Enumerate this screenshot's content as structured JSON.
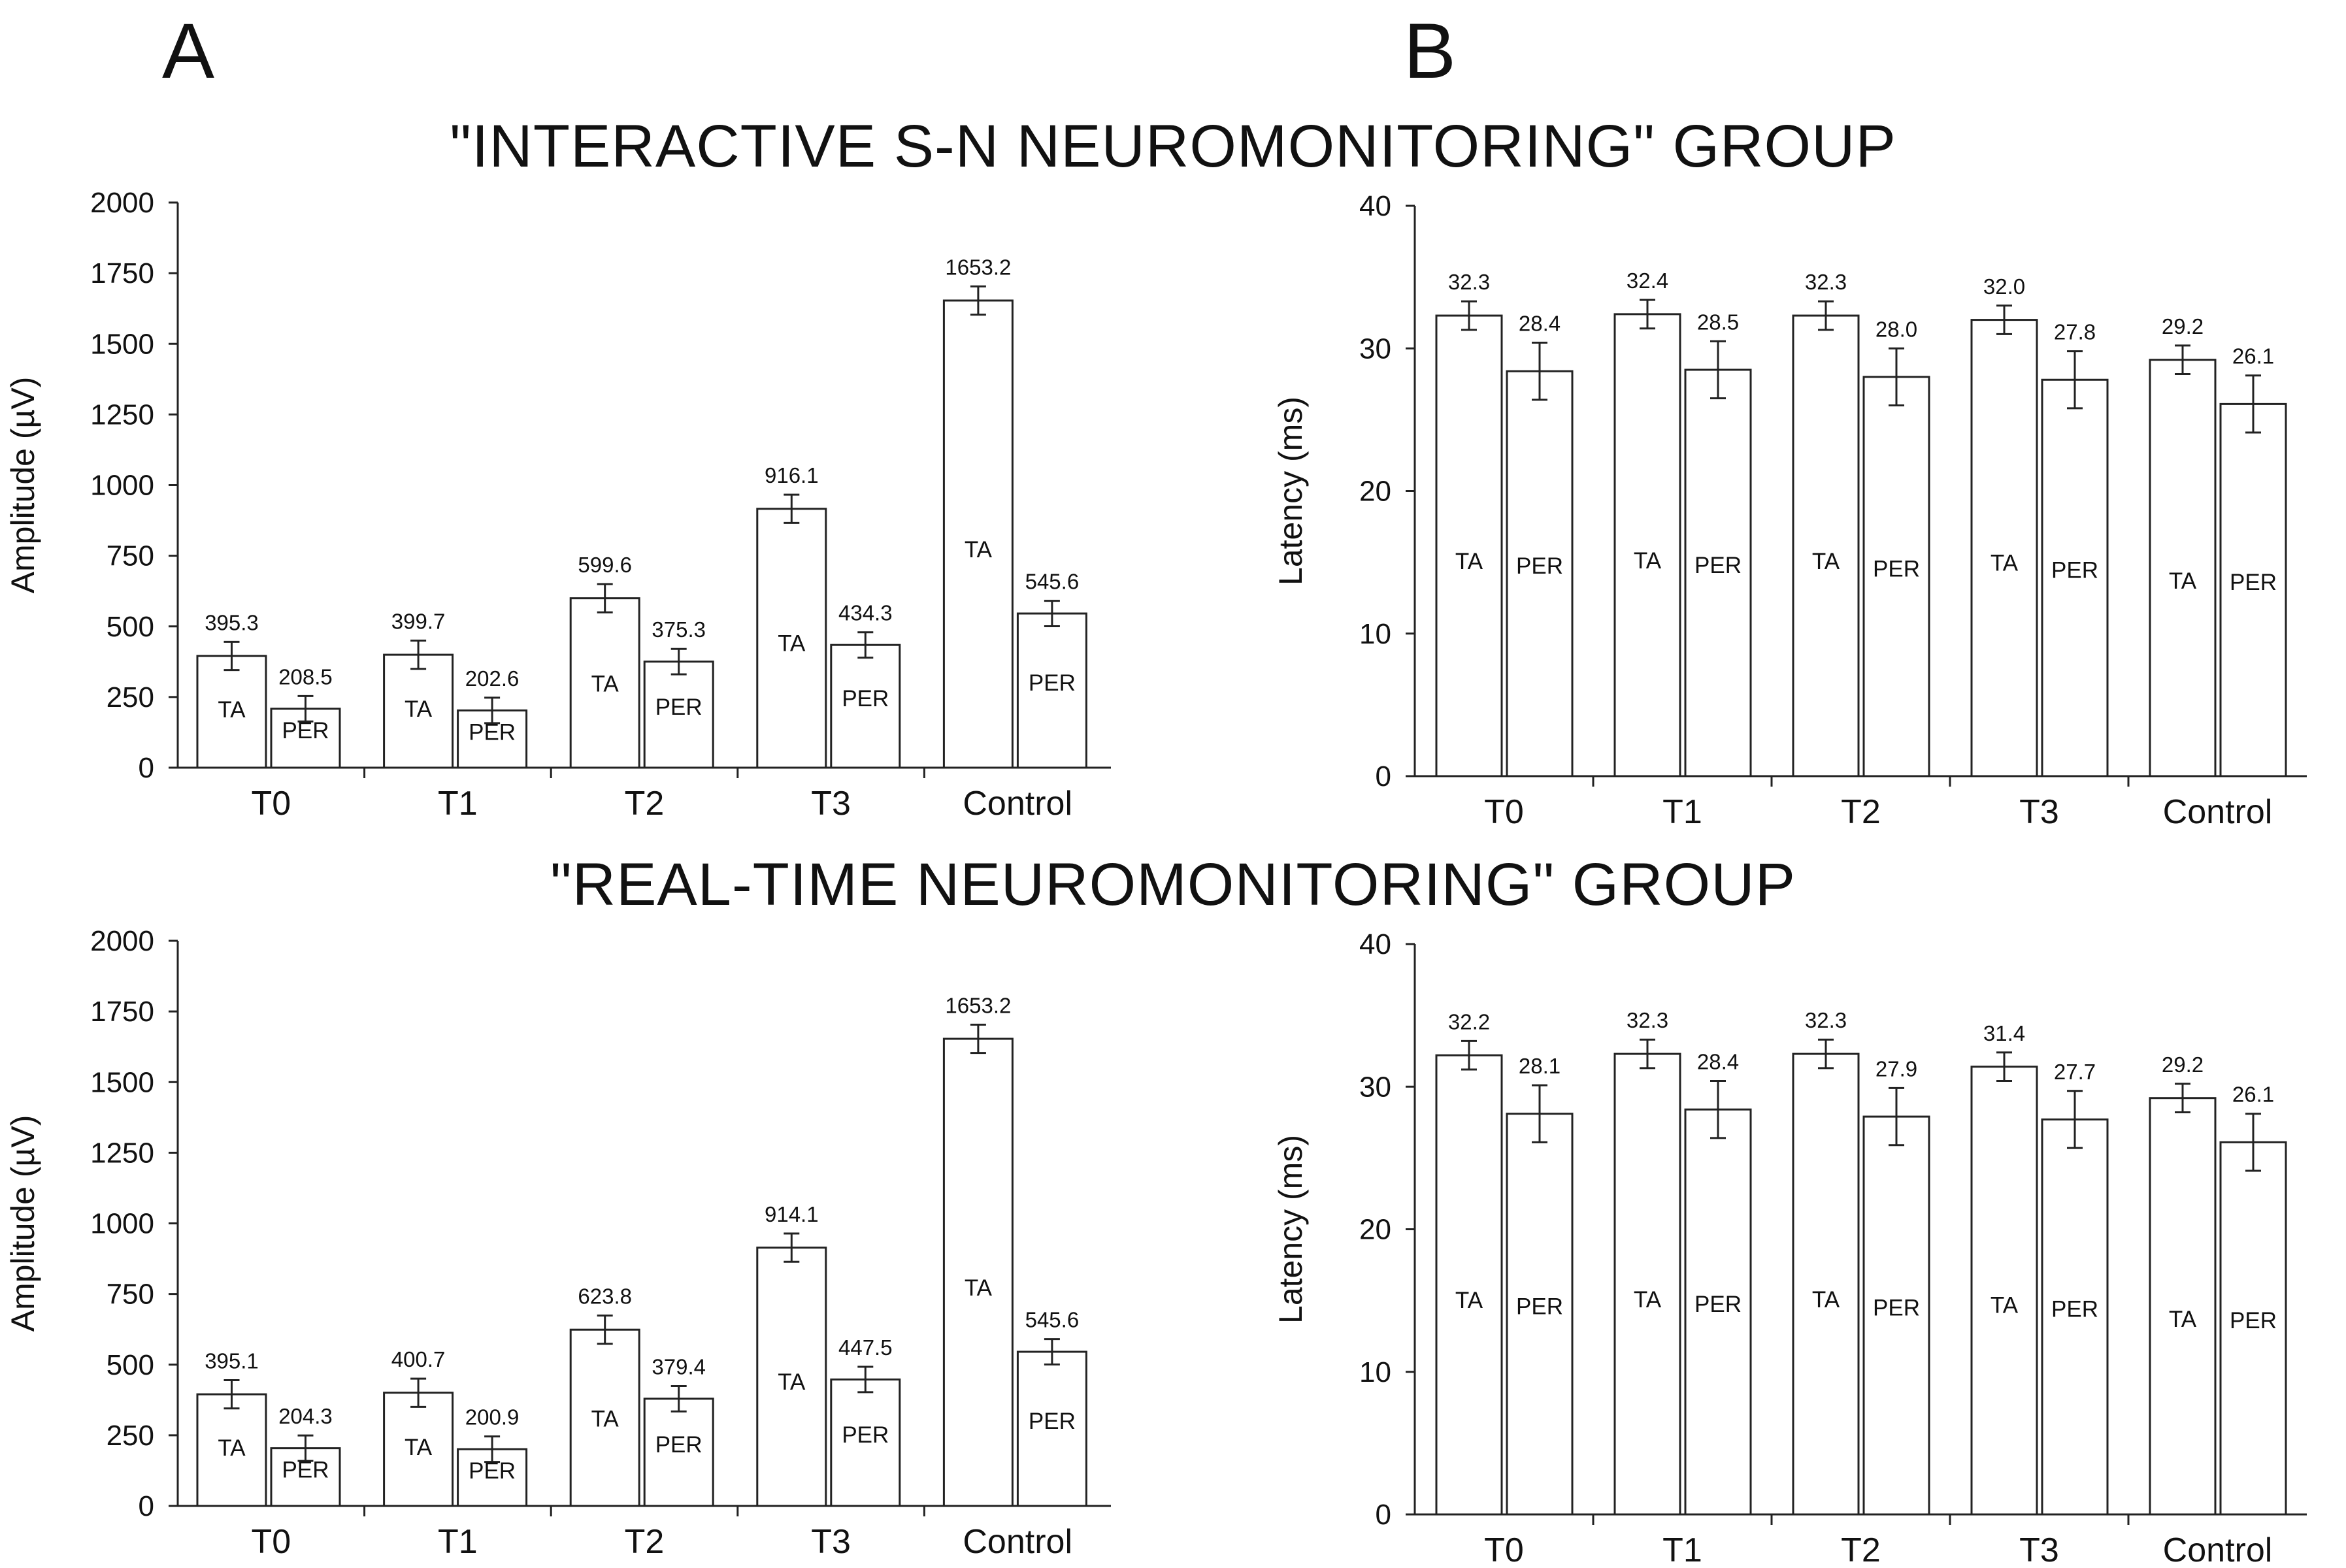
{
  "panels": {
    "a": "A",
    "b": "B"
  },
  "groups": {
    "top": "\"INTERACTIVE S-N NEUROMONITORING\" GROUP",
    "bottom": "\"REAL-TIME NEUROMONITORING\" GROUP"
  },
  "chart_data": [
    {
      "id": "top-amplitude",
      "type": "bar",
      "title": "",
      "xlabel": "",
      "ylabel": "Amplitude (µV)",
      "ylim": [
        0,
        2000
      ],
      "yticks": [
        0,
        250,
        500,
        750,
        1000,
        1250,
        1500,
        1750,
        2000
      ],
      "categories": [
        "T0",
        "T1",
        "T2",
        "T3",
        "Control"
      ],
      "series": [
        {
          "label": "TA",
          "values": [
            395.3,
            399.7,
            599.6,
            916.1,
            1653.2
          ],
          "errors": [
            50,
            50,
            50,
            50,
            50
          ]
        },
        {
          "label": "PER",
          "values": [
            208.5,
            202.6,
            375.3,
            434.3,
            545.6
          ],
          "errors": [
            45,
            45,
            45,
            45,
            45
          ]
        }
      ],
      "value_labels": [
        [
          "395.3",
          "399.7",
          "599.6",
          "916.1",
          "1653.2"
        ],
        [
          "208.5",
          "202.6",
          "375.3",
          "434.3",
          "545.6"
        ]
      ],
      "grid": false
    },
    {
      "id": "top-latency",
      "type": "bar",
      "title": "",
      "xlabel": "",
      "ylabel": "Latency (ms)",
      "ylim": [
        0,
        40
      ],
      "yticks": [
        0,
        10,
        20,
        30,
        40
      ],
      "categories": [
        "T0",
        "T1",
        "T2",
        "T3",
        "Control"
      ],
      "series": [
        {
          "label": "TA",
          "values": [
            32.3,
            32.4,
            32.3,
            32.0,
            29.2
          ],
          "errors": [
            1,
            1,
            1,
            1,
            1
          ]
        },
        {
          "label": "PER",
          "values": [
            28.4,
            28.5,
            28.0,
            27.8,
            26.1
          ],
          "errors": [
            2,
            2,
            2,
            2,
            2
          ]
        }
      ],
      "value_labels": [
        [
          "32.3",
          "32.4",
          "32.3",
          "32.0",
          "29.2"
        ],
        [
          "28.4",
          "28.5",
          "28.0",
          "27.8",
          "26.1"
        ]
      ],
      "grid": false
    },
    {
      "id": "bottom-amplitude",
      "type": "bar",
      "title": "",
      "xlabel": "",
      "ylabel": "Amplitude (µV)",
      "ylim": [
        0,
        2000
      ],
      "yticks": [
        0,
        250,
        500,
        750,
        1000,
        1250,
        1500,
        1750,
        2000
      ],
      "categories": [
        "T0",
        "T1",
        "T2",
        "T3",
        "Control"
      ],
      "series": [
        {
          "label": "TA",
          "values": [
            395.1,
            400.7,
            623.8,
            914.1,
            1653.2
          ],
          "errors": [
            50,
            50,
            50,
            50,
            50
          ]
        },
        {
          "label": "PER",
          "values": [
            204.3,
            200.9,
            379.4,
            447.5,
            545.6
          ],
          "errors": [
            45,
            45,
            45,
            45,
            45
          ]
        }
      ],
      "value_labels": [
        [
          "395.1",
          "400.7",
          "623.8",
          "914.1",
          "1653.2"
        ],
        [
          "204.3",
          "200.9",
          "379.4",
          "447.5",
          "545.6"
        ]
      ],
      "grid": false
    },
    {
      "id": "bottom-latency",
      "type": "bar",
      "title": "",
      "xlabel": "",
      "ylabel": "Latency (ms)",
      "ylim": [
        0,
        40
      ],
      "yticks": [
        0,
        10,
        20,
        30,
        40
      ],
      "categories": [
        "T0",
        "T1",
        "T2",
        "T3",
        "Control"
      ],
      "series": [
        {
          "label": "TA",
          "values": [
            32.2,
            32.3,
            32.3,
            31.4,
            29.2
          ],
          "errors": [
            1,
            1,
            1,
            1,
            1
          ]
        },
        {
          "label": "PER",
          "values": [
            28.1,
            28.4,
            27.9,
            27.7,
            26.1
          ],
          "errors": [
            2,
            2,
            2,
            2,
            2
          ]
        }
      ],
      "value_labels": [
        [
          "32.2",
          "32.3",
          "32.3",
          "31.4",
          "29.2"
        ],
        [
          "28.1",
          "28.4",
          "27.9",
          "27.7",
          "26.1"
        ]
      ],
      "grid": false
    }
  ]
}
